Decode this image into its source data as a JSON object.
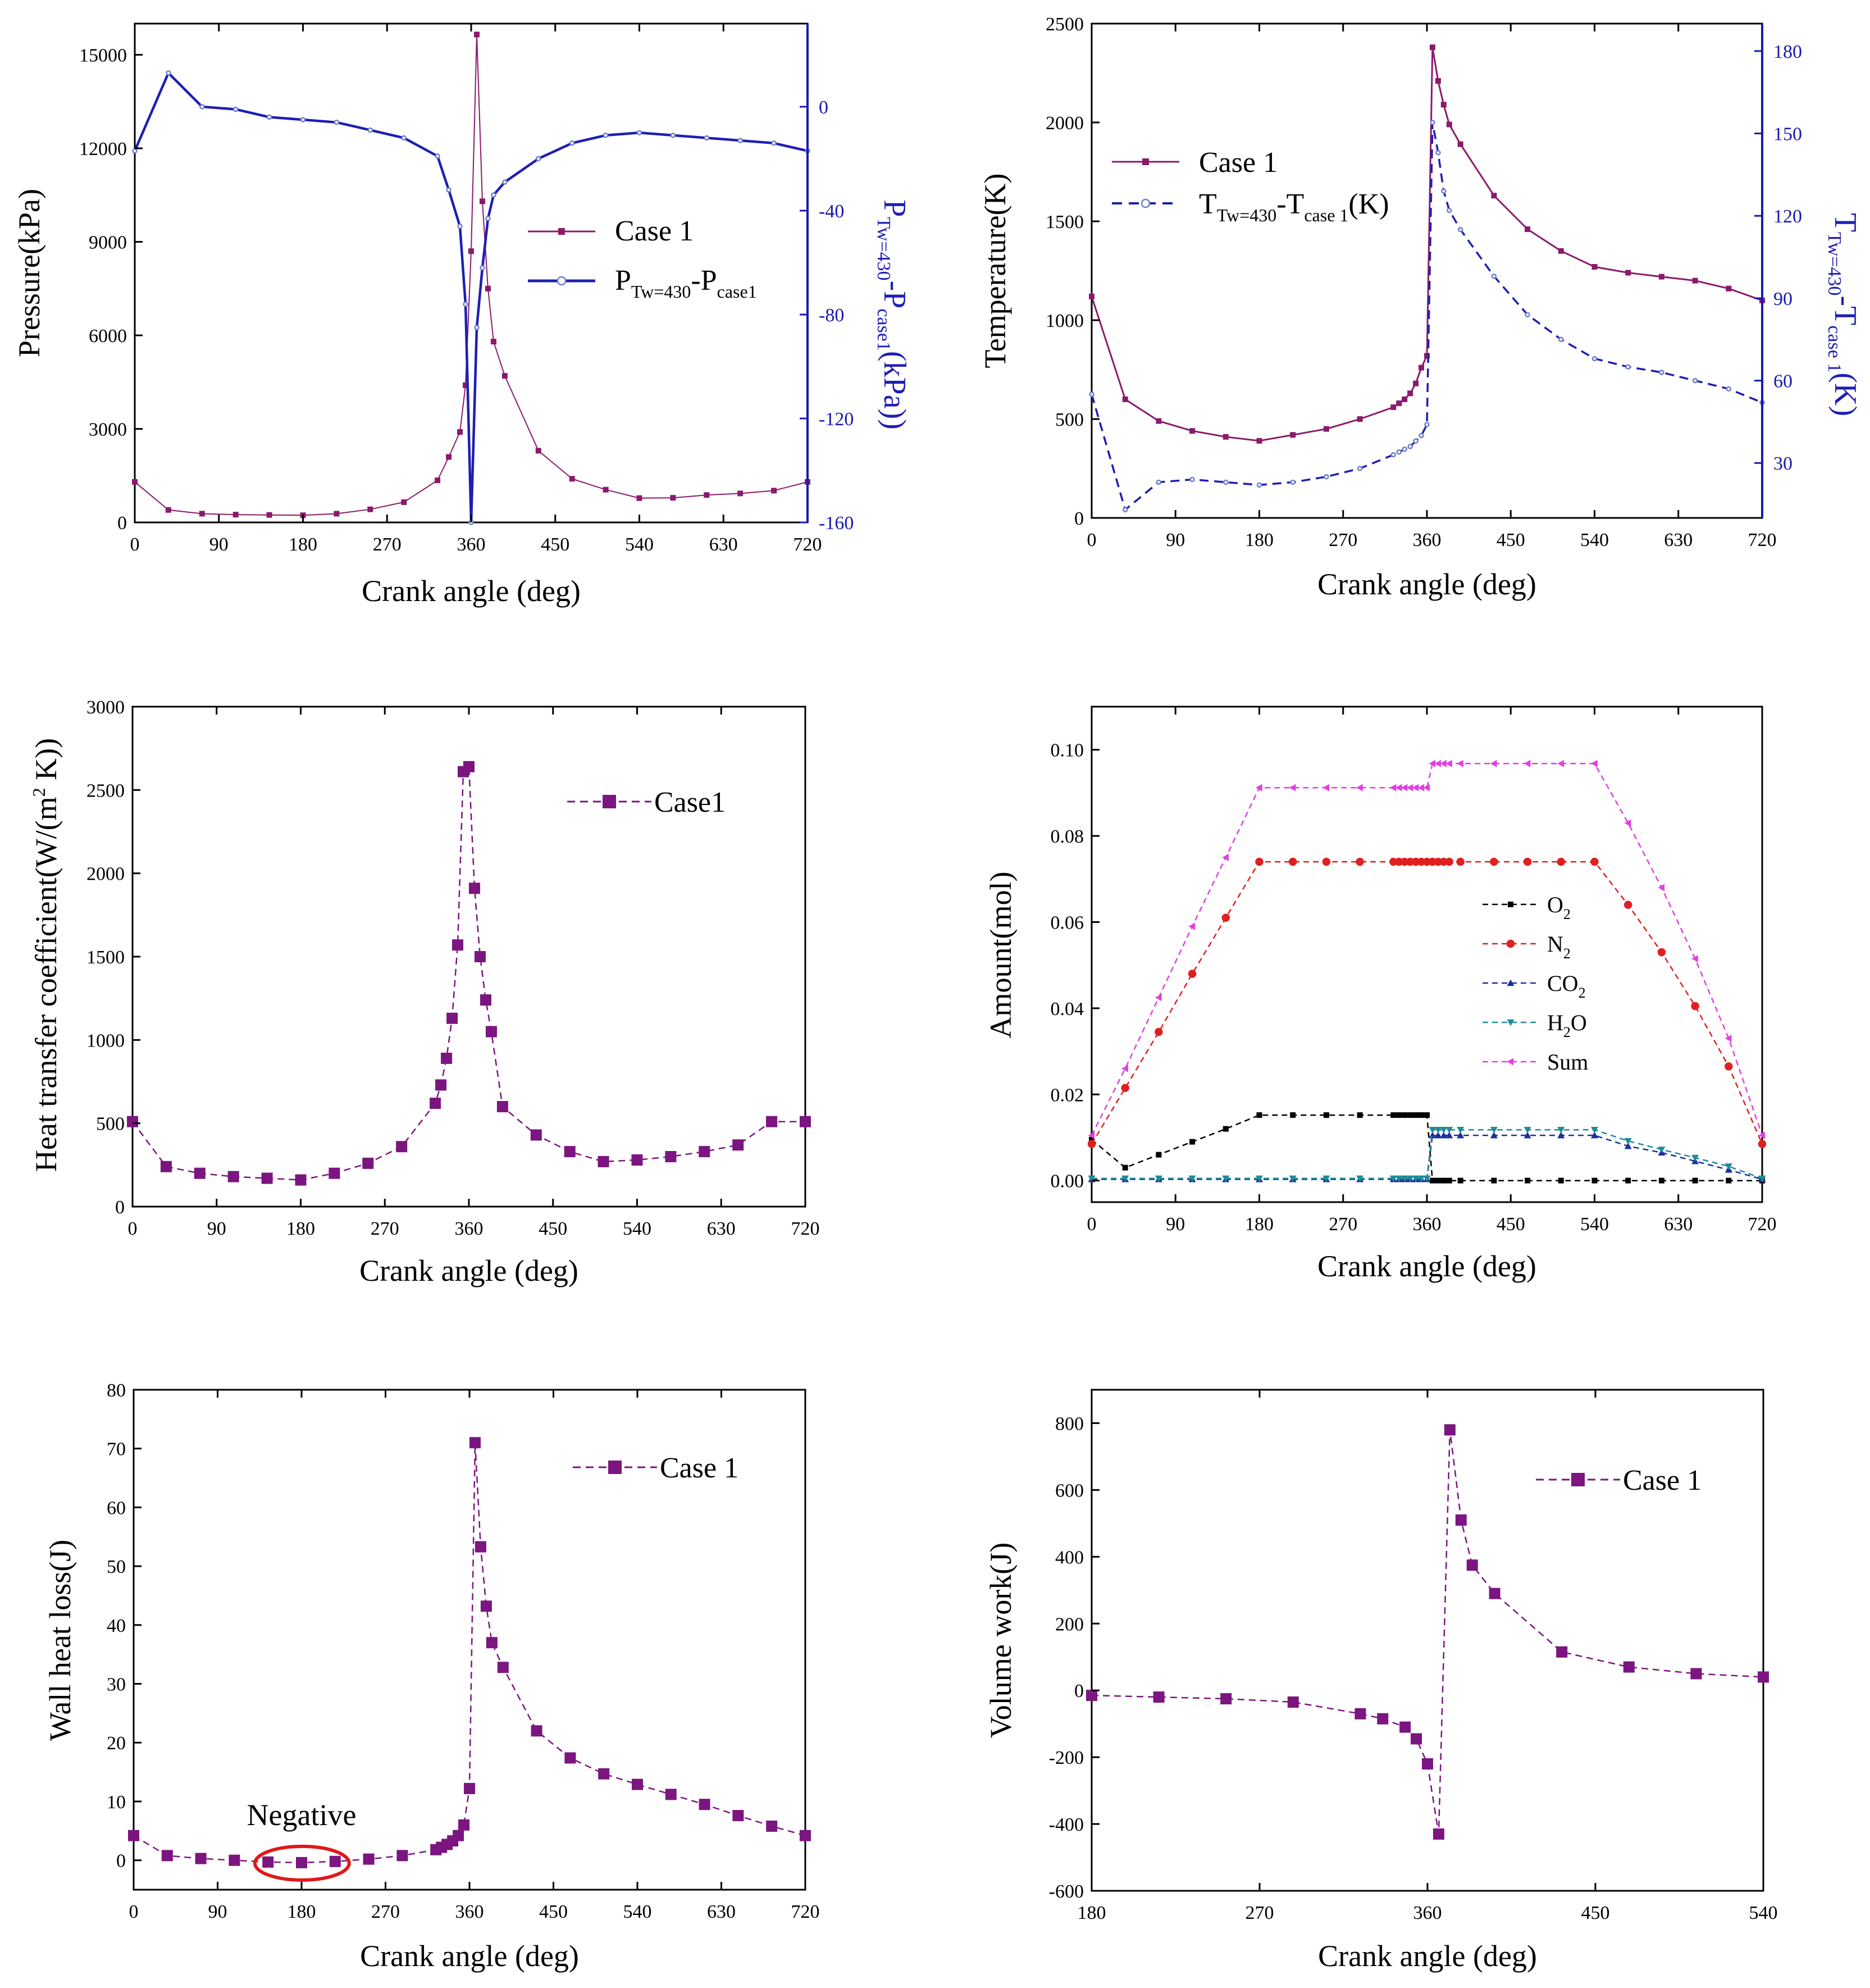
{
  "colors": {
    "purple": "#8B1A6B",
    "blue": "#1E1EB4",
    "violet": "#7B1580",
    "black": "#000000",
    "red": "#E02020",
    "navy": "#1A2FA0",
    "teal": "#1E8C96",
    "magenta": "#E040E0",
    "axisBlue": "#1818B0",
    "highlight": "#E01818"
  },
  "chart_data": [
    {
      "id": "pressure",
      "type": "line",
      "title": "",
      "xlabel": "Crank angle (deg)",
      "ylabel": "Pressure(kPa)",
      "y2label": "P_Tw=430 - P_case1 (kPa)",
      "xlim": [
        0,
        720
      ],
      "ylim": [
        0,
        16000
      ],
      "y2lim": [
        -160,
        32
      ],
      "xticks": [
        0,
        90,
        180,
        270,
        360,
        450,
        540,
        630,
        720
      ],
      "yticks": [
        0,
        3000,
        6000,
        9000,
        12000,
        15000
      ],
      "y2ticks": [
        -160,
        -120,
        -80,
        -40,
        0
      ],
      "legend_position": "center-right",
      "series": [
        {
          "name": "Case 1",
          "axis": "left",
          "x": [
            0,
            36,
            72,
            108,
            144,
            180,
            216,
            252,
            288,
            324,
            336,
            348,
            354,
            360,
            366,
            372,
            378,
            384,
            396,
            432,
            468,
            504,
            540,
            576,
            612,
            648,
            684,
            720
          ],
          "y": [
            1300,
            400,
            280,
            250,
            240,
            230,
            280,
            420,
            650,
            1350,
            2100,
            2900,
            4400,
            8700,
            15650,
            10300,
            7500,
            5800,
            4700,
            2300,
            1400,
            1050,
            780,
            790,
            880,
            930,
            1020,
            1300
          ]
        },
        {
          "name": "P_Tw=430-P_case1",
          "axis": "right",
          "x": [
            0,
            36,
            72,
            108,
            144,
            180,
            216,
            252,
            288,
            324,
            336,
            348,
            354,
            360,
            366,
            372,
            378,
            384,
            396,
            432,
            468,
            504,
            540,
            576,
            612,
            648,
            684,
            720
          ],
          "y": [
            -17,
            13,
            0,
            -1,
            -4,
            -5,
            -6,
            -9,
            -12,
            -19,
            -32,
            -46,
            -76,
            -160,
            -85,
            -62,
            -43,
            -34,
            -29,
            -20,
            -14,
            -11,
            -10,
            -11,
            -12,
            -13,
            -14,
            -17
          ]
        }
      ]
    },
    {
      "id": "temperature",
      "type": "line",
      "title": "",
      "xlabel": "Crank angle (deg)",
      "ylabel": "Temperature(K)",
      "y2label": "T_Tw=430 - T_case 1 (K)",
      "xlim": [
        0,
        720
      ],
      "ylim": [
        0,
        2500
      ],
      "y2lim": [
        10,
        190
      ],
      "xticks": [
        0,
        90,
        180,
        270,
        360,
        450,
        540,
        630,
        720
      ],
      "yticks": [
        0,
        500,
        1000,
        1500,
        2000,
        2500
      ],
      "y2ticks": [
        30,
        60,
        90,
        120,
        150,
        180
      ],
      "legend_position": "top-left",
      "series": [
        {
          "name": "Case 1",
          "axis": "left",
          "x": [
            0,
            36,
            72,
            108,
            144,
            180,
            216,
            252,
            288,
            324,
            330,
            336,
            342,
            348,
            354,
            360,
            366,
            372,
            378,
            384,
            396,
            432,
            468,
            504,
            540,
            576,
            612,
            648,
            684,
            720
          ],
          "y": [
            1120,
            600,
            490,
            440,
            410,
            390,
            420,
            450,
            500,
            560,
            580,
            600,
            630,
            680,
            760,
            820,
            2380,
            2210,
            2090,
            1990,
            1890,
            1630,
            1460,
            1350,
            1270,
            1240,
            1220,
            1200,
            1160,
            1100
          ]
        },
        {
          "name": "T_Tw=430-T_case 1(K)",
          "axis": "right",
          "x": [
            0,
            36,
            72,
            108,
            144,
            180,
            216,
            252,
            288,
            324,
            330,
            336,
            342,
            348,
            354,
            360,
            366,
            372,
            378,
            384,
            396,
            432,
            468,
            504,
            540,
            576,
            612,
            648,
            684,
            720
          ],
          "y": [
            55,
            13,
            23,
            24,
            23,
            22,
            23,
            25,
            28,
            33,
            34,
            35,
            36,
            38,
            40,
            44,
            154,
            143,
            129,
            122,
            115,
            98,
            84,
            75,
            68,
            65,
            63,
            60,
            57,
            52
          ]
        }
      ]
    },
    {
      "id": "htc",
      "type": "line",
      "title": "",
      "xlabel": "Crank angle (deg)",
      "ylabel": "Heat transfer coefficient(W/(m^2 K))",
      "xlim": [
        0,
        720
      ],
      "ylim": [
        0,
        3000
      ],
      "xticks": [
        0,
        90,
        180,
        270,
        360,
        450,
        540,
        630,
        720
      ],
      "yticks": [
        0,
        500,
        1000,
        1500,
        2000,
        2500,
        3000
      ],
      "legend_position": "top-right",
      "series": [
        {
          "name": "Case1",
          "x": [
            0,
            36,
            72,
            108,
            144,
            180,
            216,
            252,
            288,
            324,
            330,
            336,
            342,
            348,
            354,
            360,
            366,
            372,
            378,
            384,
            396,
            432,
            468,
            504,
            540,
            576,
            612,
            648,
            684,
            720
          ],
          "y": [
            510,
            240,
            200,
            180,
            170,
            160,
            200,
            260,
            360,
            620,
            730,
            890,
            1130,
            1570,
            2610,
            2640,
            1910,
            1500,
            1240,
            1050,
            600,
            430,
            330,
            270,
            280,
            300,
            330,
            370,
            510,
            510
          ]
        }
      ]
    },
    {
      "id": "amount",
      "type": "line",
      "title": "",
      "xlabel": "Crank angle (deg)",
      "ylabel": "Amount(mol)",
      "xlim": [
        0,
        720
      ],
      "ylim": [
        -0.005,
        0.11
      ],
      "xticks": [
        0,
        90,
        180,
        270,
        360,
        450,
        540,
        630,
        720
      ],
      "yticks": [
        0.0,
        0.02,
        0.04,
        0.06,
        0.08,
        0.1
      ],
      "ytick_labels": [
        "0.00",
        "0.02",
        "0.04",
        "0.06",
        "0.08",
        "0.10"
      ],
      "legend_position": "center-right",
      "legend_labels": [
        {
          "base": "O",
          "sub": "2"
        },
        {
          "base": "N",
          "sub": "2"
        },
        {
          "base": "CO",
          "sub": "2"
        },
        {
          "base": "H",
          "sub": "2",
          "tail": "O"
        },
        {
          "base": "Sum",
          "sub": ""
        }
      ],
      "series": [
        {
          "name": "O2",
          "marker": "square",
          "x": [
            0,
            36,
            72,
            108,
            144,
            180,
            216,
            252,
            288,
            324,
            330,
            336,
            342,
            348,
            354,
            360,
            366,
            372,
            378,
            384,
            396,
            432,
            468,
            504,
            540,
            576,
            612,
            648,
            684,
            720
          ],
          "y": [
            0.0095,
            0.003,
            0.006,
            0.009,
            0.012,
            0.0152,
            0.0152,
            0.0152,
            0.0152,
            0.0152,
            0.0152,
            0.0152,
            0.0152,
            0.0152,
            0.0152,
            0.0152,
            0.0,
            0.0,
            0.0,
            0.0,
            0.0,
            0.0,
            0.0,
            0.0,
            0.0,
            0.0,
            0.0,
            0.0,
            0.0,
            0.0
          ]
        },
        {
          "name": "N2",
          "marker": "circle",
          "x": [
            0,
            36,
            72,
            108,
            144,
            180,
            216,
            252,
            288,
            324,
            330,
            336,
            342,
            348,
            354,
            360,
            366,
            372,
            378,
            384,
            396,
            432,
            468,
            504,
            540,
            576,
            612,
            648,
            684,
            720
          ],
          "y": [
            0.0085,
            0.0215,
            0.0345,
            0.048,
            0.061,
            0.074,
            0.074,
            0.074,
            0.074,
            0.074,
            0.074,
            0.074,
            0.074,
            0.074,
            0.074,
            0.074,
            0.074,
            0.074,
            0.074,
            0.074,
            0.074,
            0.074,
            0.074,
            0.074,
            0.074,
            0.064,
            0.053,
            0.0405,
            0.0265,
            0.0085
          ]
        },
        {
          "name": "CO2",
          "marker": "triangle-up",
          "x": [
            0,
            36,
            72,
            108,
            144,
            180,
            216,
            252,
            288,
            324,
            330,
            336,
            342,
            348,
            354,
            360,
            366,
            372,
            378,
            384,
            396,
            432,
            468,
            504,
            540,
            576,
            612,
            648,
            684,
            720
          ],
          "y": [
            0.0003,
            0.0003,
            0.0003,
            0.0003,
            0.0003,
            0.0003,
            0.0003,
            0.0003,
            0.0003,
            0.0003,
            0.0003,
            0.0003,
            0.0003,
            0.0003,
            0.0003,
            0.0003,
            0.0105,
            0.0105,
            0.0105,
            0.0105,
            0.0105,
            0.0105,
            0.0105,
            0.0105,
            0.0105,
            0.008,
            0.0065,
            0.0045,
            0.0025,
            0.0003
          ]
        },
        {
          "name": "H2O",
          "marker": "triangle-down",
          "x": [
            0,
            36,
            72,
            108,
            144,
            180,
            216,
            252,
            288,
            324,
            330,
            336,
            342,
            348,
            354,
            360,
            366,
            372,
            378,
            384,
            396,
            432,
            468,
            504,
            540,
            576,
            612,
            648,
            684,
            720
          ],
          "y": [
            0.0005,
            0.0005,
            0.0005,
            0.0005,
            0.0005,
            0.0005,
            0.0005,
            0.0005,
            0.0005,
            0.0005,
            0.0005,
            0.0005,
            0.0005,
            0.0005,
            0.0005,
            0.0005,
            0.0118,
            0.0118,
            0.0118,
            0.0118,
            0.0118,
            0.0118,
            0.0118,
            0.0118,
            0.0118,
            0.0092,
            0.0072,
            0.0053,
            0.0033,
            0.0005
          ]
        },
        {
          "name": "Sum",
          "marker": "triangle-left",
          "x": [
            0,
            36,
            72,
            108,
            144,
            180,
            216,
            252,
            288,
            324,
            330,
            336,
            342,
            348,
            354,
            360,
            366,
            372,
            378,
            384,
            396,
            432,
            468,
            504,
            540,
            576,
            612,
            648,
            684,
            720
          ],
          "y": [
            0.0105,
            0.026,
            0.0425,
            0.059,
            0.075,
            0.0912,
            0.0912,
            0.0912,
            0.0912,
            0.0912,
            0.0912,
            0.0912,
            0.0912,
            0.0912,
            0.0912,
            0.0912,
            0.0968,
            0.0968,
            0.0968,
            0.0968,
            0.0968,
            0.0968,
            0.0968,
            0.0968,
            0.0968,
            0.083,
            0.068,
            0.0515,
            0.033,
            0.0105
          ]
        }
      ]
    },
    {
      "id": "wallheat",
      "type": "line",
      "title": "",
      "xlabel": "Crank angle (deg)",
      "ylabel": "Wall heat loss(J)",
      "xlim": [
        0,
        720
      ],
      "ylim": [
        -5,
        80
      ],
      "xticks": [
        0,
        90,
        180,
        270,
        360,
        450,
        540,
        630,
        720
      ],
      "yticks": [
        0,
        10,
        20,
        30,
        40,
        50,
        60,
        70,
        80
      ],
      "legend_position": "top-right",
      "annotations": [
        {
          "text": "Negative",
          "x": 180,
          "y": 6,
          "ellipse_x": [
            145,
            216
          ],
          "ellipse_y": -0.5
        }
      ],
      "series": [
        {
          "name": "Case 1",
          "x": [
            0,
            36,
            72,
            108,
            144,
            180,
            216,
            252,
            288,
            324,
            330,
            336,
            342,
            348,
            354,
            360,
            366,
            372,
            378,
            384,
            396,
            432,
            468,
            504,
            540,
            576,
            612,
            648,
            684,
            720
          ],
          "y": [
            4.2,
            0.8,
            0.3,
            0.0,
            -0.3,
            -0.4,
            -0.2,
            0.2,
            0.8,
            1.8,
            2.2,
            2.7,
            3.3,
            4.2,
            6.0,
            12.2,
            71.0,
            53.3,
            43.2,
            37.0,
            32.8,
            22.0,
            17.4,
            14.7,
            12.9,
            11.2,
            9.5,
            7.6,
            5.8,
            4.2
          ]
        }
      ]
    },
    {
      "id": "volumework",
      "type": "line",
      "title": "",
      "xlabel": "Crank angle (deg)",
      "ylabel": "Volume work(J)",
      "xlim": [
        180,
        540
      ],
      "ylim": [
        -600,
        900
      ],
      "xticks": [
        180,
        270,
        360,
        450,
        540
      ],
      "yticks": [
        -600,
        -400,
        -200,
        0,
        200,
        400,
        600,
        800
      ],
      "legend_position": "top-right",
      "series": [
        {
          "name": "Case 1",
          "x": [
            180,
            216,
            252,
            288,
            324,
            336,
            348,
            354,
            360,
            366,
            372,
            378,
            384,
            396,
            432,
            468,
            504,
            540
          ],
          "y": [
            -15,
            -20,
            -25,
            -35,
            -70,
            -85,
            -110,
            -145,
            -220,
            -430,
            780,
            510,
            375,
            290,
            115,
            70,
            50,
            40
          ]
        }
      ]
    }
  ]
}
